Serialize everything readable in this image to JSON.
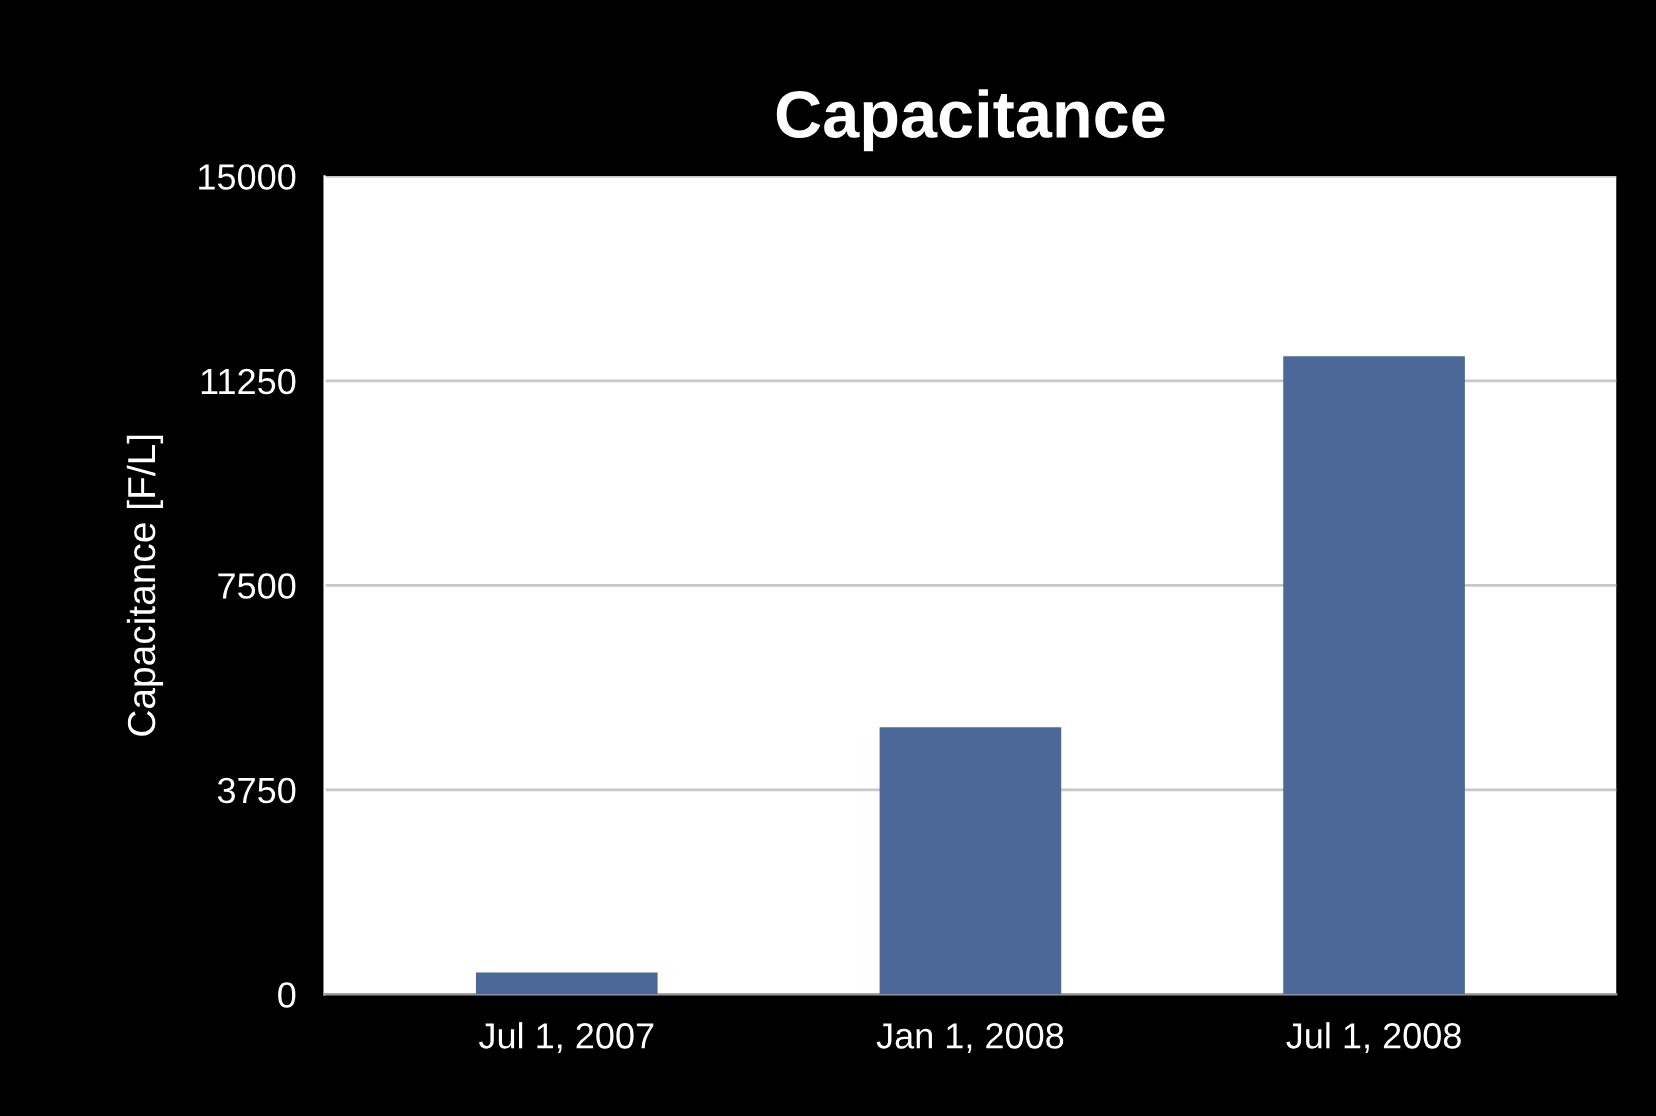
{
  "chart_data": {
    "type": "bar",
    "title": "Capacitance",
    "ylabel": "Capacitance [F/L]",
    "categories": [
      "Jul 1, 2007",
      "Jan 1, 2008",
      "Jul 1, 2008"
    ],
    "values": [
      400,
      4900,
      11700
    ],
    "color": "#4b6898",
    "ylim": [
      0,
      15000
    ],
    "yticks": [
      0,
      3750,
      7500,
      11250,
      15000
    ],
    "grid": "y"
  }
}
